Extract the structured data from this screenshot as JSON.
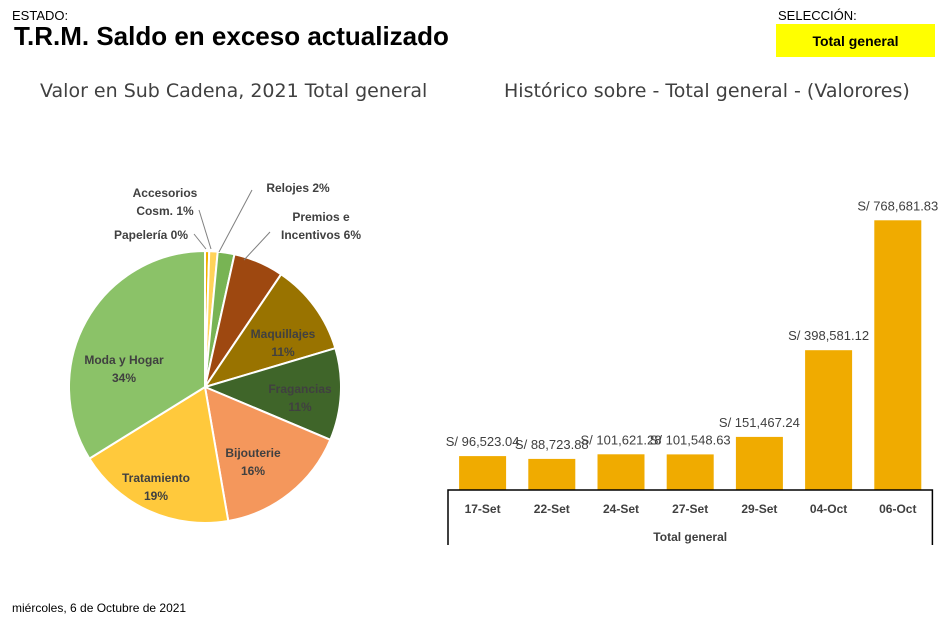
{
  "header": {
    "estado_label": "ESTADO:",
    "title": "T.R.M. Saldo en exceso actualizado",
    "seleccion_label": "SELECCIÓN:",
    "seleccion_value": "Total general",
    "seleccion_color": "#ffff00"
  },
  "footer": {
    "date": "miércoles, 6 de Octubre de 2021"
  },
  "chart_data": [
    {
      "type": "pie",
      "title": "Valor en Sub Cadena, 2021 Total general",
      "slices": [
        {
          "name": "Papelería",
          "value": 0.5,
          "label_lines": [
            "Papelería 0%"
          ],
          "color": "#f0b000"
        },
        {
          "name": "Accesorios Cosm.",
          "value": 1,
          "label_lines": [
            "Accesorios",
            "Cosm. 1%"
          ],
          "color": "#ffd35a"
        },
        {
          "name": "Relojes",
          "value": 2,
          "label_lines": [
            "Relojes 2%"
          ],
          "color": "#78b454"
        },
        {
          "name": "Premios e Incentivos",
          "value": 6,
          "label_lines": [
            "Premios e",
            "Incentivos 6%"
          ],
          "color": "#9e4810"
        },
        {
          "name": "Maquillajes",
          "value": 11,
          "label_lines": [
            "Maquillajes",
            "11%"
          ],
          "color": "#997300"
        },
        {
          "name": "Fragancias",
          "value": 11,
          "label_lines": [
            "Fragancias",
            "11%"
          ],
          "color": "#3f6529"
        },
        {
          "name": "Bijouterie",
          "value": 16,
          "label_lines": [
            "Bijouterie",
            "16%"
          ],
          "color": "#f4975c"
        },
        {
          "name": "Tratamiento",
          "value": 19,
          "label_lines": [
            "Tratamiento",
            "19%"
          ],
          "color": "#ffc93c"
        },
        {
          "name": "Moda y Hogar",
          "value": 34,
          "label_lines": [
            "Moda y Hogar",
            "34%"
          ],
          "color": "#8bc268"
        }
      ]
    },
    {
      "type": "bar",
      "title": "Histórico sobre - Total general - (Valorores)",
      "categories": [
        "17-Set",
        "22-Set",
        "24-Set",
        "27-Set",
        "29-Set",
        "04-Oct",
        "06-Oct"
      ],
      "values": [
        96523.04,
        88723.88,
        101621.28,
        101548.63,
        151467.24,
        398581.12,
        768681.83
      ],
      "data_labels": [
        "S/ 96,523.04",
        "S/ 88,723.88",
        "S/ 101,621.28",
        "S/ 101,548.63",
        "S/ 151,467.24",
        "S/ 398,581.12",
        "S/ 768,681.83"
      ],
      "group_label": "Total general",
      "color": "#f0ab00",
      "ylim": [
        0,
        800000
      ]
    }
  ]
}
